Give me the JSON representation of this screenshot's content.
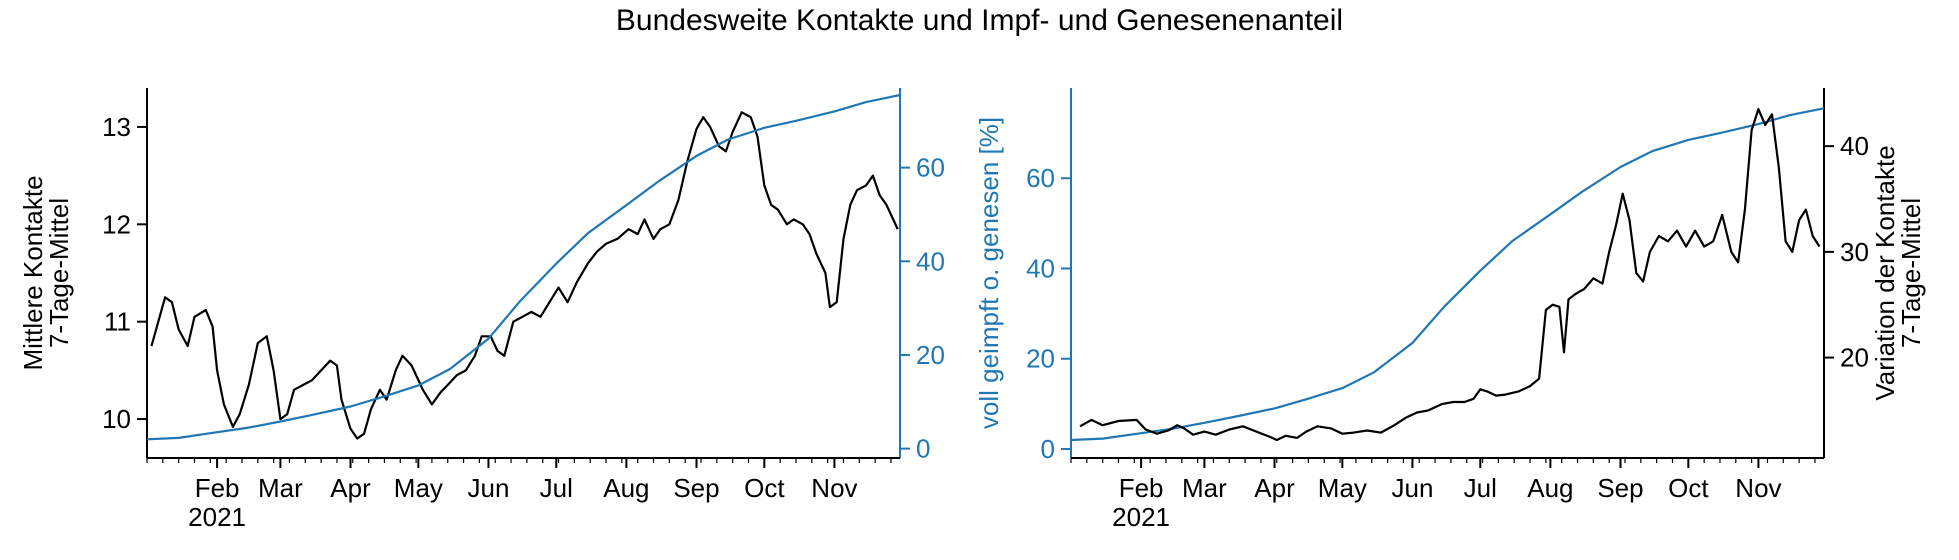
{
  "figure": {
    "title": "Bundesweite Kontakte und Impf- und Genesenenanteil"
  },
  "chart_data": [
    {
      "type": "line",
      "panel": "left",
      "x_tick_labels": [
        "Feb",
        "Mar",
        "Apr",
        "May",
        "Jun",
        "Jul",
        "Aug",
        "Sep",
        "Oct",
        "Nov"
      ],
      "x_year_label": "2021",
      "xlim": [
        "2021-01-01",
        "2021-11-30"
      ],
      "left_axis": {
        "label_line1": "Mittlere Kontakte",
        "label_line2": "7-Tage-Mittel",
        "ylim": [
          9.6,
          13.4
        ],
        "ticks": [
          "10",
          "11",
          "12",
          "13"
        ],
        "tick_values": [
          10,
          11,
          12,
          13
        ],
        "color": "#000000"
      },
      "right_axis": {
        "label": "",
        "ylim": [
          -2,
          77
        ],
        "ticks": [
          "0",
          "20",
          "40",
          "60"
        ],
        "tick_values": [
          0,
          20,
          40,
          60
        ],
        "color": "#1f77b4"
      },
      "series": [
        {
          "axis": "left",
          "color": "#000000",
          "points": [
            [
              "2021-01-03",
              10.75
            ],
            [
              "2021-01-06",
              11.0
            ],
            [
              "2021-01-09",
              11.25
            ],
            [
              "2021-01-12",
              11.2
            ],
            [
              "2021-01-15",
              10.92
            ],
            [
              "2021-01-19",
              10.75
            ],
            [
              "2021-01-22",
              11.05
            ],
            [
              "2021-01-27",
              11.12
            ],
            [
              "2021-01-30",
              10.95
            ],
            [
              "2021-02-01",
              10.5
            ],
            [
              "2021-02-04",
              10.15
            ],
            [
              "2021-02-08",
              9.92
            ],
            [
              "2021-02-11",
              10.05
            ],
            [
              "2021-02-15",
              10.35
            ],
            [
              "2021-02-19",
              10.78
            ],
            [
              "2021-02-23",
              10.85
            ],
            [
              "2021-02-26",
              10.5
            ],
            [
              "2021-03-01",
              10.0
            ],
            [
              "2021-03-04",
              10.05
            ],
            [
              "2021-03-07",
              10.3
            ],
            [
              "2021-03-11",
              10.35
            ],
            [
              "2021-03-15",
              10.4
            ],
            [
              "2021-03-19",
              10.5
            ],
            [
              "2021-03-23",
              10.6
            ],
            [
              "2021-03-26",
              10.55
            ],
            [
              "2021-03-28",
              10.2
            ],
            [
              "2021-04-01",
              9.9
            ],
            [
              "2021-04-04",
              9.8
            ],
            [
              "2021-04-07",
              9.85
            ],
            [
              "2021-04-10",
              10.1
            ],
            [
              "2021-04-14",
              10.3
            ],
            [
              "2021-04-17",
              10.2
            ],
            [
              "2021-04-21",
              10.5
            ],
            [
              "2021-04-24",
              10.65
            ],
            [
              "2021-04-28",
              10.55
            ],
            [
              "2021-05-03",
              10.3
            ],
            [
              "2021-05-07",
              10.15
            ],
            [
              "2021-05-11",
              10.28
            ],
            [
              "2021-05-14",
              10.35
            ],
            [
              "2021-05-18",
              10.45
            ],
            [
              "2021-05-22",
              10.5
            ],
            [
              "2021-05-26",
              10.65
            ],
            [
              "2021-05-29",
              10.85
            ],
            [
              "2021-06-02",
              10.85
            ],
            [
              "2021-06-05",
              10.7
            ],
            [
              "2021-06-08",
              10.65
            ],
            [
              "2021-06-12",
              11.0
            ],
            [
              "2021-06-16",
              11.05
            ],
            [
              "2021-06-20",
              11.1
            ],
            [
              "2021-06-24",
              11.05
            ],
            [
              "2021-06-28",
              11.2
            ],
            [
              "2021-07-02",
              11.35
            ],
            [
              "2021-07-06",
              11.2
            ],
            [
              "2021-07-10",
              11.4
            ],
            [
              "2021-07-15",
              11.6
            ],
            [
              "2021-07-19",
              11.72
            ],
            [
              "2021-07-23",
              11.8
            ],
            [
              "2021-07-28",
              11.85
            ],
            [
              "2021-08-02",
              11.95
            ],
            [
              "2021-08-06",
              11.9
            ],
            [
              "2021-08-09",
              12.05
            ],
            [
              "2021-08-13",
              11.85
            ],
            [
              "2021-08-16",
              11.95
            ],
            [
              "2021-08-20",
              12.0
            ],
            [
              "2021-08-24",
              12.25
            ],
            [
              "2021-08-28",
              12.65
            ],
            [
              "2021-09-01",
              12.98
            ],
            [
              "2021-09-04",
              13.1
            ],
            [
              "2021-09-07",
              13.0
            ],
            [
              "2021-09-11",
              12.8
            ],
            [
              "2021-09-14",
              12.75
            ],
            [
              "2021-09-17",
              12.95
            ],
            [
              "2021-09-21",
              13.15
            ],
            [
              "2021-09-25",
              13.1
            ],
            [
              "2021-09-28",
              12.9
            ],
            [
              "2021-10-01",
              12.4
            ],
            [
              "2021-10-04",
              12.2
            ],
            [
              "2021-10-07",
              12.15
            ],
            [
              "2021-10-11",
              12.0
            ],
            [
              "2021-10-14",
              12.05
            ],
            [
              "2021-10-18",
              12.0
            ],
            [
              "2021-10-21",
              11.9
            ],
            [
              "2021-10-24",
              11.7
            ],
            [
              "2021-10-28",
              11.5
            ],
            [
              "2021-10-30",
              11.15
            ],
            [
              "2021-11-02",
              11.2
            ],
            [
              "2021-11-05",
              11.85
            ],
            [
              "2021-11-08",
              12.2
            ],
            [
              "2021-11-11",
              12.35
            ],
            [
              "2021-11-15",
              12.4
            ],
            [
              "2021-11-18",
              12.5
            ],
            [
              "2021-11-21",
              12.3
            ],
            [
              "2021-11-24",
              12.2
            ],
            [
              "2021-11-27",
              12.05
            ],
            [
              "2021-11-29",
              11.95
            ]
          ]
        },
        {
          "axis": "right",
          "color": "#1f77b4",
          "points": [
            [
              "2021-01-01",
              2.0
            ],
            [
              "2021-01-15",
              2.3
            ],
            [
              "2021-02-01",
              3.5
            ],
            [
              "2021-02-15",
              4.5
            ],
            [
              "2021-03-01",
              5.8
            ],
            [
              "2021-03-15",
              7.2
            ],
            [
              "2021-04-01",
              9.0
            ],
            [
              "2021-04-15",
              11.0
            ],
            [
              "2021-05-01",
              13.5
            ],
            [
              "2021-05-15",
              17.0
            ],
            [
              "2021-06-01",
              23.5
            ],
            [
              "2021-06-15",
              31.5
            ],
            [
              "2021-07-01",
              39.5
            ],
            [
              "2021-07-15",
              46.0
            ],
            [
              "2021-08-01",
              52.0
            ],
            [
              "2021-08-15",
              57.0
            ],
            [
              "2021-09-01",
              62.5
            ],
            [
              "2021-09-15",
              66.0
            ],
            [
              "2021-10-01",
              68.5
            ],
            [
              "2021-10-15",
              70.0
            ],
            [
              "2021-11-01",
              72.0
            ],
            [
              "2021-11-15",
              74.0
            ],
            [
              "2021-11-30",
              75.5
            ]
          ]
        }
      ]
    },
    {
      "type": "line",
      "panel": "right",
      "x_tick_labels": [
        "Feb",
        "Mar",
        "Apr",
        "May",
        "Jun",
        "Jul",
        "Aug",
        "Sep",
        "Oct",
        "Nov"
      ],
      "x_year_label": "2021",
      "xlim": [
        "2021-01-01",
        "2021-11-30"
      ],
      "left_axis": {
        "label": "voll geimpft o. genesen [%]",
        "ylim": [
          -2,
          80
        ],
        "ticks": [
          "0",
          "20",
          "40",
          "60"
        ],
        "tick_values": [
          0,
          20,
          40,
          60
        ],
        "color": "#1f77b4"
      },
      "right_axis": {
        "label_line1": "Variation der Kontakte",
        "label_line2": "7-Tage-Mittel",
        "ylim": [
          10.5,
          45.5
        ],
        "ticks": [
          "20",
          "30",
          "40"
        ],
        "tick_values": [
          20,
          30,
          40
        ],
        "color": "#000000"
      },
      "series": [
        {
          "axis": "left",
          "color": "#1f77b4",
          "points": [
            [
              "2021-01-01",
              2.0
            ],
            [
              "2021-01-15",
              2.3
            ],
            [
              "2021-02-01",
              3.5
            ],
            [
              "2021-02-15",
              4.5
            ],
            [
              "2021-03-01",
              5.8
            ],
            [
              "2021-03-15",
              7.2
            ],
            [
              "2021-04-01",
              9.0
            ],
            [
              "2021-04-15",
              11.0
            ],
            [
              "2021-05-01",
              13.5
            ],
            [
              "2021-05-15",
              17.0
            ],
            [
              "2021-06-01",
              23.5
            ],
            [
              "2021-06-15",
              31.5
            ],
            [
              "2021-07-01",
              39.5
            ],
            [
              "2021-07-15",
              46.0
            ],
            [
              "2021-08-01",
              52.0
            ],
            [
              "2021-08-15",
              57.0
            ],
            [
              "2021-09-01",
              62.5
            ],
            [
              "2021-09-15",
              66.0
            ],
            [
              "2021-10-01",
              68.5
            ],
            [
              "2021-10-15",
              70.0
            ],
            [
              "2021-11-01",
              72.0
            ],
            [
              "2021-11-15",
              74.0
            ],
            [
              "2021-11-30",
              75.5
            ]
          ]
        },
        {
          "axis": "right",
          "color": "#000000",
          "points": [
            [
              "2021-01-05",
              13.5
            ],
            [
              "2021-01-10",
              14.1
            ],
            [
              "2021-01-15",
              13.6
            ],
            [
              "2021-01-22",
              14.0
            ],
            [
              "2021-01-30",
              14.1
            ],
            [
              "2021-02-03",
              13.2
            ],
            [
              "2021-02-08",
              12.8
            ],
            [
              "2021-02-13",
              13.1
            ],
            [
              "2021-02-17",
              13.6
            ],
            [
              "2021-02-20",
              13.3
            ],
            [
              "2021-02-24",
              12.7
            ],
            [
              "2021-03-01",
              13.0
            ],
            [
              "2021-03-06",
              12.7
            ],
            [
              "2021-03-12",
              13.2
            ],
            [
              "2021-03-18",
              13.5
            ],
            [
              "2021-03-24",
              13.0
            ],
            [
              "2021-03-30",
              12.5
            ],
            [
              "2021-04-02",
              12.2
            ],
            [
              "2021-04-06",
              12.6
            ],
            [
              "2021-04-11",
              12.4
            ],
            [
              "2021-04-15",
              13.0
            ],
            [
              "2021-04-20",
              13.5
            ],
            [
              "2021-04-26",
              13.3
            ],
            [
              "2021-05-01",
              12.8
            ],
            [
              "2021-05-06",
              12.9
            ],
            [
              "2021-05-12",
              13.1
            ],
            [
              "2021-05-18",
              12.9
            ],
            [
              "2021-05-24",
              13.6
            ],
            [
              "2021-05-29",
              14.3
            ],
            [
              "2021-06-03",
              14.8
            ],
            [
              "2021-06-08",
              15.0
            ],
            [
              "2021-06-14",
              15.6
            ],
            [
              "2021-06-19",
              15.8
            ],
            [
              "2021-06-24",
              15.8
            ],
            [
              "2021-06-28",
              16.1
            ],
            [
              "2021-07-01",
              17.0
            ],
            [
              "2021-07-04",
              16.8
            ],
            [
              "2021-07-08",
              16.4
            ],
            [
              "2021-07-12",
              16.5
            ],
            [
              "2021-07-18",
              16.8
            ],
            [
              "2021-07-23",
              17.3
            ],
            [
              "2021-07-27",
              18.0
            ],
            [
              "2021-07-30",
              24.5
            ],
            [
              "2021-08-02",
              25.0
            ],
            [
              "2021-08-05",
              24.8
            ],
            [
              "2021-08-07",
              20.5
            ],
            [
              "2021-08-09",
              25.5
            ],
            [
              "2021-08-12",
              26.0
            ],
            [
              "2021-08-16",
              26.5
            ],
            [
              "2021-08-20",
              27.5
            ],
            [
              "2021-08-24",
              27.0
            ],
            [
              "2021-08-27",
              30.0
            ],
            [
              "2021-08-30",
              32.5
            ],
            [
              "2021-09-02",
              35.5
            ],
            [
              "2021-09-05",
              33.0
            ],
            [
              "2021-09-08",
              28.0
            ],
            [
              "2021-09-11",
              27.2
            ],
            [
              "2021-09-14",
              30.0
            ],
            [
              "2021-09-18",
              31.5
            ],
            [
              "2021-09-22",
              31.0
            ],
            [
              "2021-09-26",
              32.0
            ],
            [
              "2021-09-30",
              30.5
            ],
            [
              "2021-10-04",
              32.0
            ],
            [
              "2021-10-08",
              30.5
            ],
            [
              "2021-10-12",
              31.0
            ],
            [
              "2021-10-16",
              33.5
            ],
            [
              "2021-10-20",
              30.0
            ],
            [
              "2021-10-23",
              29.0
            ],
            [
              "2021-10-26",
              34.0
            ],
            [
              "2021-10-29",
              41.5
            ],
            [
              "2021-11-01",
              43.5
            ],
            [
              "2021-11-04",
              42.0
            ],
            [
              "2021-11-07",
              43.0
            ],
            [
              "2021-11-10",
              38.0
            ],
            [
              "2021-11-13",
              31.0
            ],
            [
              "2021-11-16",
              30.0
            ],
            [
              "2021-11-19",
              33.0
            ],
            [
              "2021-11-22",
              34.0
            ],
            [
              "2021-11-25",
              31.5
            ],
            [
              "2021-11-28",
              30.5
            ]
          ]
        }
      ]
    }
  ]
}
